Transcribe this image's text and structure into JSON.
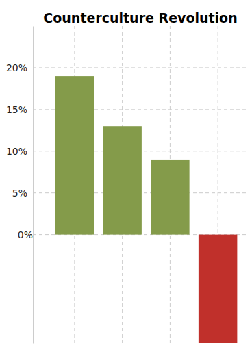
{
  "chart_data": {
    "type": "bar",
    "title": "Counterculture Revolution",
    "categories": [
      null,
      null,
      null,
      null
    ],
    "values": [
      19,
      13,
      9,
      -13
    ],
    "colors": [
      "#849b4a",
      "#849b4a",
      "#849b4a",
      "#c0302b"
    ],
    "ylim": [
      -13,
      25
    ],
    "yticks": [
      {
        "value": 0,
        "label": "0%"
      },
      {
        "value": 5,
        "label": "5%"
      },
      {
        "value": 10,
        "label": "10%"
      },
      {
        "value": 15,
        "label": "15%"
      },
      {
        "value": 20,
        "label": "20%"
      }
    ],
    "grid": true,
    "tick_labels": "y"
  }
}
